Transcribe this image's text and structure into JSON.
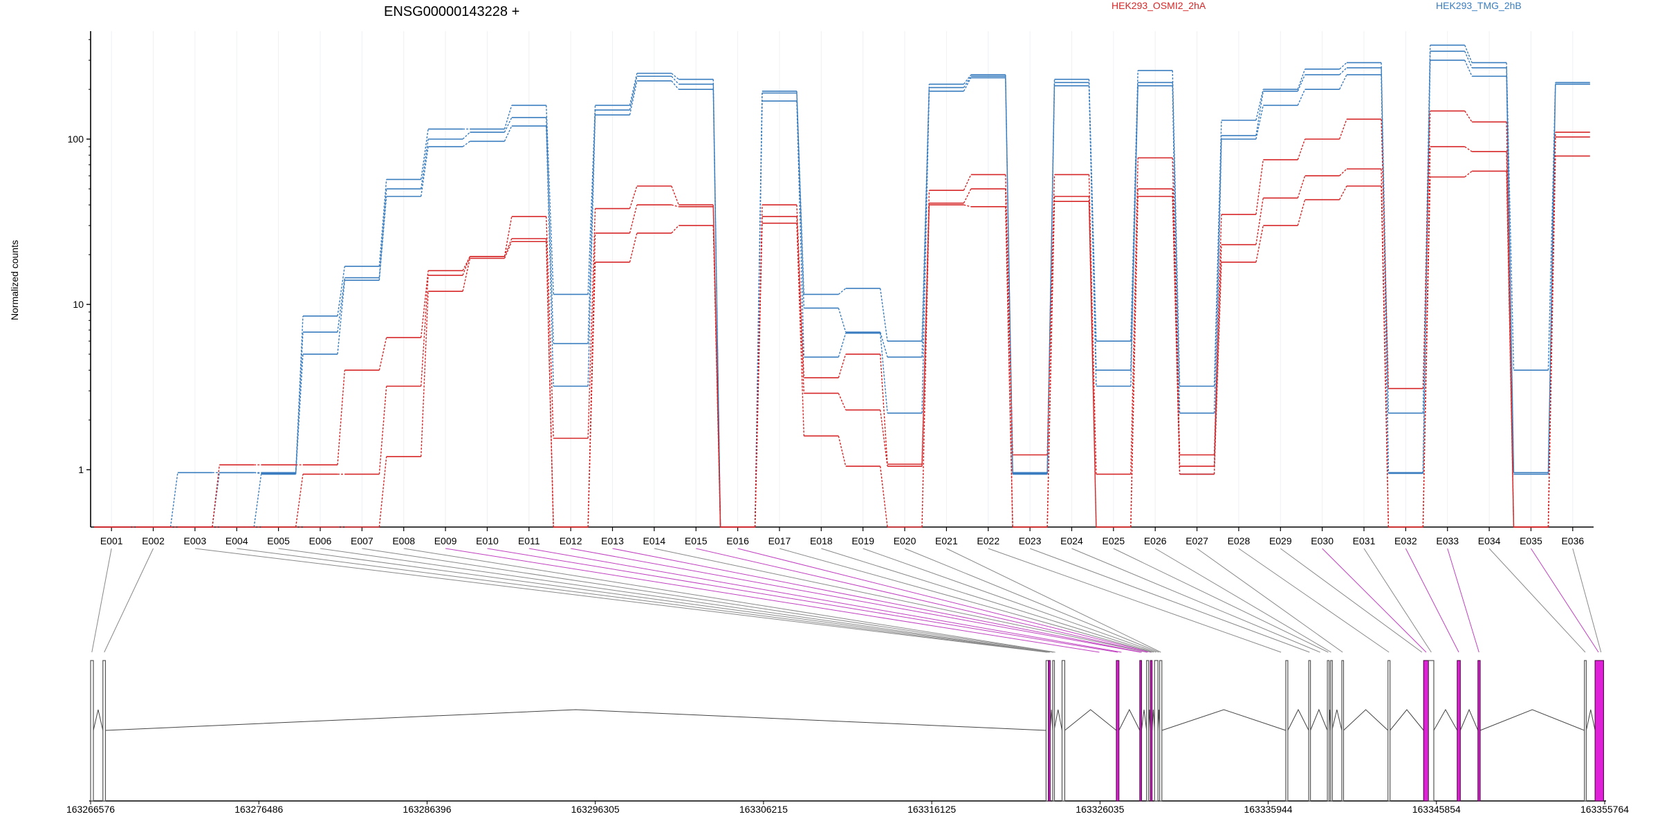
{
  "chart_data": {
    "type": "line",
    "title": "ENSG00000143228 +",
    "ylabel": "Normalized counts",
    "yscale": "log",
    "ylim": [
      0.45,
      450
    ],
    "yticks": [
      "1",
      "10",
      "100"
    ],
    "ytick_values": [
      1,
      10,
      100
    ],
    "categories": [
      "E001",
      "E002",
      "E003",
      "E004",
      "E005",
      "E006",
      "E007",
      "E008",
      "E009",
      "E010",
      "E011",
      "E012",
      "E013",
      "E014",
      "E015",
      "E016",
      "E017",
      "E018",
      "E019",
      "E020",
      "E021",
      "E022",
      "E023",
      "E024",
      "E025",
      "E026",
      "E027",
      "E028",
      "E029",
      "E030",
      "E031",
      "E032",
      "E033",
      "E034",
      "E035",
      "E036"
    ],
    "legend": [
      {
        "label": "HEK293_OSMI2_2hA",
        "color": "#d62728"
      },
      {
        "label": "HEK293_TMG_2hB",
        "color": "#3a7dbf"
      }
    ],
    "series": [
      {
        "color": "#3a7dbf",
        "values": [
          0.45,
          0.45,
          0.96,
          0.96,
          0.96,
          8.5,
          17,
          57,
          115,
          115,
          160,
          11.5,
          160,
          250,
          230,
          0.45,
          195,
          11.5,
          12.5,
          6,
          215,
          245,
          0.96,
          230,
          6,
          260,
          3.2,
          130,
          200,
          265,
          290,
          2.2,
          370,
          290,
          4,
          220
        ]
      },
      {
        "color": "#3a7dbf",
        "values": [
          0.45,
          0.45,
          0.45,
          0.96,
          0.95,
          6.8,
          14.5,
          50,
          100,
          110,
          135,
          5.8,
          150,
          240,
          215,
          0.45,
          190,
          9.5,
          6.8,
          4.8,
          205,
          240,
          0.95,
          220,
          4,
          220,
          2.2,
          105,
          195,
          245,
          270,
          0.96,
          340,
          270,
          0.96,
          215
        ]
      },
      {
        "color": "#3a7dbf",
        "values": [
          0.45,
          0.45,
          0.45,
          0.45,
          0.94,
          5,
          14,
          45,
          90,
          97,
          120,
          3.2,
          140,
          225,
          200,
          0.45,
          170,
          4.8,
          6.7,
          2.2,
          195,
          235,
          0.94,
          210,
          3.2,
          210,
          0.94,
          100,
          160,
          200,
          245,
          0.95,
          300,
          240,
          0.94,
          215
        ]
      },
      {
        "color": "#d62728",
        "values": [
          0.45,
          0.45,
          0.45,
          1.07,
          1.07,
          1.07,
          4,
          6.3,
          16,
          19.5,
          34,
          1.55,
          38,
          52,
          40,
          0.45,
          40,
          3.6,
          5,
          1.08,
          49,
          61,
          1.23,
          61,
          0.94,
          77,
          1.23,
          35,
          75,
          100,
          132,
          3.1,
          148,
          127,
          0.45,
          110
        ]
      },
      {
        "color": "#d62728",
        "values": [
          0.45,
          0.45,
          0.45,
          0.45,
          0.45,
          0.94,
          0.94,
          3.2,
          15,
          19.5,
          25,
          0.45,
          27,
          40,
          39,
          0.45,
          34,
          2.9,
          2.3,
          1.05,
          41,
          50,
          0.45,
          45,
          0.45,
          50,
          1.05,
          23,
          44,
          60,
          66,
          0.45,
          90,
          84,
          0.45,
          103
        ]
      },
      {
        "color": "#d62728",
        "values": [
          0.45,
          0.45,
          0.45,
          0.45,
          0.45,
          0.45,
          0.45,
          1.2,
          12,
          19,
          24,
          0.45,
          18,
          27,
          30,
          0.45,
          31,
          1.6,
          1.05,
          0.45,
          40,
          39,
          0.45,
          42,
          0.45,
          45,
          0.94,
          18,
          30,
          43,
          52,
          0.45,
          59,
          64,
          0.45,
          79
        ]
      }
    ]
  },
  "gene_model": {
    "coordinate_labels": [
      "163266576",
      "163276486",
      "163286396",
      "163296305",
      "163306215",
      "163316125",
      "163326035",
      "163335944",
      "163345854",
      "163355764"
    ],
    "coordinate_values": [
      163266576,
      163276486,
      163286396,
      163296305,
      163306215,
      163316125,
      163326035,
      163335944,
      163345854,
      163355764
    ],
    "exons": [
      {
        "start": 163266576,
        "end": 163266740,
        "highlight": false
      },
      {
        "start": 163267300,
        "end": 163267450,
        "highlight": false
      },
      {
        "start": 163322860,
        "end": 163322990,
        "highlight": false
      },
      {
        "start": 163322990,
        "end": 163323100,
        "highlight": true
      },
      {
        "start": 163323250,
        "end": 163323330,
        "highlight": false
      },
      {
        "start": 163323800,
        "end": 163323960,
        "highlight": false
      },
      {
        "start": 163327000,
        "end": 163327150,
        "highlight": true
      },
      {
        "start": 163328380,
        "end": 163328480,
        "highlight": true
      },
      {
        "start": 163328780,
        "end": 163328900,
        "highlight": false
      },
      {
        "start": 163329000,
        "end": 163329100,
        "highlight": true
      },
      {
        "start": 163329250,
        "end": 163329450,
        "highlight": false
      },
      {
        "start": 163329550,
        "end": 163329680,
        "highlight": false
      },
      {
        "start": 163336980,
        "end": 163337100,
        "highlight": false
      },
      {
        "start": 163338330,
        "end": 163338430,
        "highlight": false
      },
      {
        "start": 163339430,
        "end": 163339530,
        "highlight": false
      },
      {
        "start": 163339620,
        "end": 163339700,
        "highlight": false
      },
      {
        "start": 163340280,
        "end": 163340380,
        "highlight": false
      },
      {
        "start": 163343000,
        "end": 163343120,
        "highlight": false
      },
      {
        "start": 163345100,
        "end": 163345390,
        "highlight": true
      },
      {
        "start": 163345390,
        "end": 163345700,
        "highlight": false
      },
      {
        "start": 163347080,
        "end": 163347260,
        "highlight": true
      },
      {
        "start": 163348300,
        "end": 163348430,
        "highlight": true
      },
      {
        "start": 163354570,
        "end": 163354680,
        "highlight": false
      },
      {
        "start": 163355200,
        "end": 163355700,
        "highlight": true
      }
    ],
    "bin_positions": [
      163266650,
      163267380,
      163322900,
      163322950,
      163323040,
      163323080,
      163323290,
      163323400,
      163326000,
      163327080,
      163327300,
      163328430,
      163328500,
      163328800,
      163328850,
      163329030,
      163329080,
      163329200,
      163329350,
      163329500,
      163329620,
      163336700,
      163338380,
      163339000,
      163339480,
      163339650,
      163340330,
      163343060,
      163345000,
      163345250,
      163345550,
      163347170,
      163348360,
      163354620,
      163355400,
      163355550
    ],
    "bin_highlight": [
      false,
      false,
      false,
      false,
      false,
      false,
      false,
      false,
      true,
      true,
      true,
      true,
      true,
      false,
      true,
      true,
      false,
      false,
      false,
      false,
      false,
      false,
      false,
      false,
      false,
      false,
      false,
      false,
      false,
      true,
      false,
      true,
      true,
      false,
      true,
      false
    ],
    "highlight_color": "#e020d8",
    "exon_outline_color": "#555555"
  }
}
